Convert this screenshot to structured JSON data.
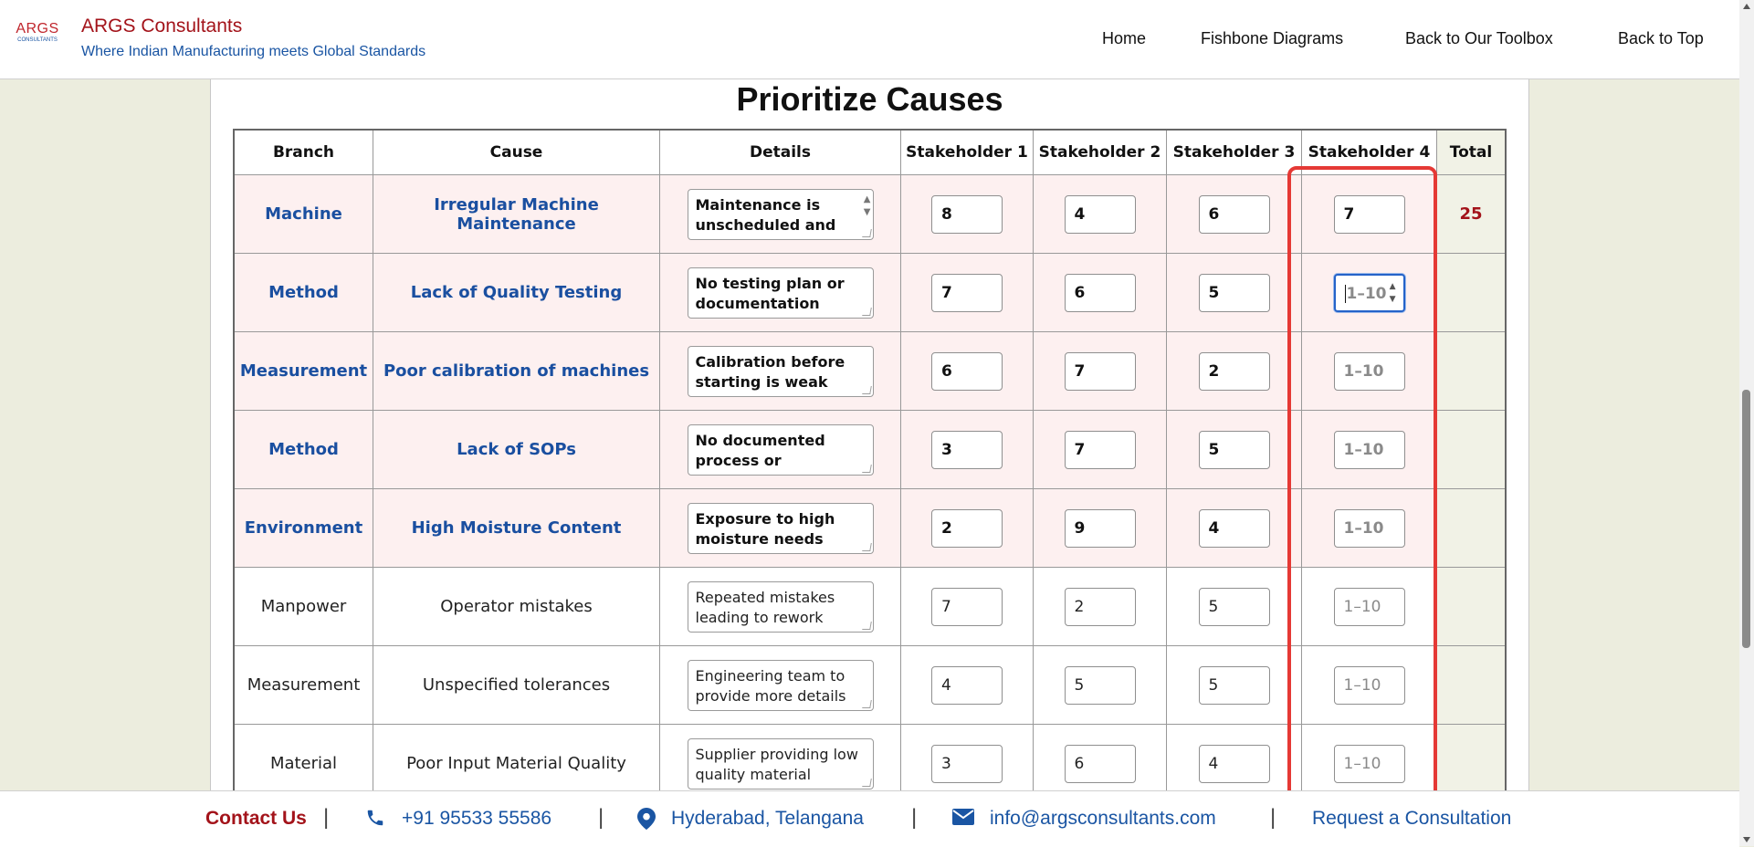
{
  "header": {
    "logo_main": "ARGS",
    "logo_sub": "CONSULTANTS",
    "brand_name": "ARGS Consultants",
    "tagline": "Where Indian Manufacturing meets Global Standards",
    "nav": [
      "Home",
      "Fishbone Diagrams",
      "Back to Our Toolbox",
      "Back to Top"
    ]
  },
  "main": {
    "title": "Prioritize Causes",
    "columns": [
      "Branch",
      "Cause",
      "Details",
      "Stakeholder 1",
      "Stakeholder 2",
      "Stakeholder 3",
      "Stakeholder 4",
      "Total"
    ],
    "placeholder": "1–10",
    "rows": [
      {
        "branch": "Machine",
        "cause": "Irregular Machine Maintenance",
        "details": "Maintenance is unscheduled and unplanned",
        "s1": "8",
        "s2": "4",
        "s3": "6",
        "s4": "7",
        "total": "25"
      },
      {
        "branch": "Method",
        "cause": "Lack of Quality Testing",
        "details": "No testing plan or documentation",
        "s1": "7",
        "s2": "6",
        "s3": "5",
        "s4": "",
        "total": ""
      },
      {
        "branch": "Measurement",
        "cause": "Poor calibration of machines",
        "details": "Calibration before starting is weak",
        "s1": "6",
        "s2": "7",
        "s3": "2",
        "s4": "",
        "total": ""
      },
      {
        "branch": "Method",
        "cause": "Lack of SOPs",
        "details": "No documented process or standards available",
        "s1": "3",
        "s2": "7",
        "s3": "5",
        "s4": "",
        "total": ""
      },
      {
        "branch": "Environment",
        "cause": "High Moisture Content",
        "details": "Exposure to high moisture needs more processing",
        "s1": "2",
        "s2": "9",
        "s3": "4",
        "s4": "",
        "total": ""
      },
      {
        "branch": "Manpower",
        "cause": "Operator mistakes",
        "details": "Repeated mistakes leading to rework",
        "s1": "7",
        "s2": "2",
        "s3": "5",
        "s4": "",
        "total": ""
      },
      {
        "branch": "Measurement",
        "cause": "Unspecified tolerances",
        "details": "Engineering team to provide more details",
        "s1": "4",
        "s2": "5",
        "s3": "5",
        "s4": "",
        "total": ""
      },
      {
        "branch": "Material",
        "cause": "Poor Input Material Quality",
        "details": "Supplier providing low quality material",
        "s1": "3",
        "s2": "6",
        "s3": "4",
        "s4": "",
        "total": ""
      }
    ]
  },
  "footer": {
    "contact_label": "Contact Us",
    "phone": "+91 95533 55586",
    "location": "Hyderabad, Telangana",
    "email": "info@argsconsultants.com",
    "consult": "Request a Consultation"
  },
  "colors": {
    "brand_red": "#a3131a",
    "brand_blue": "#1a55a3",
    "highlight": "#e53935"
  }
}
